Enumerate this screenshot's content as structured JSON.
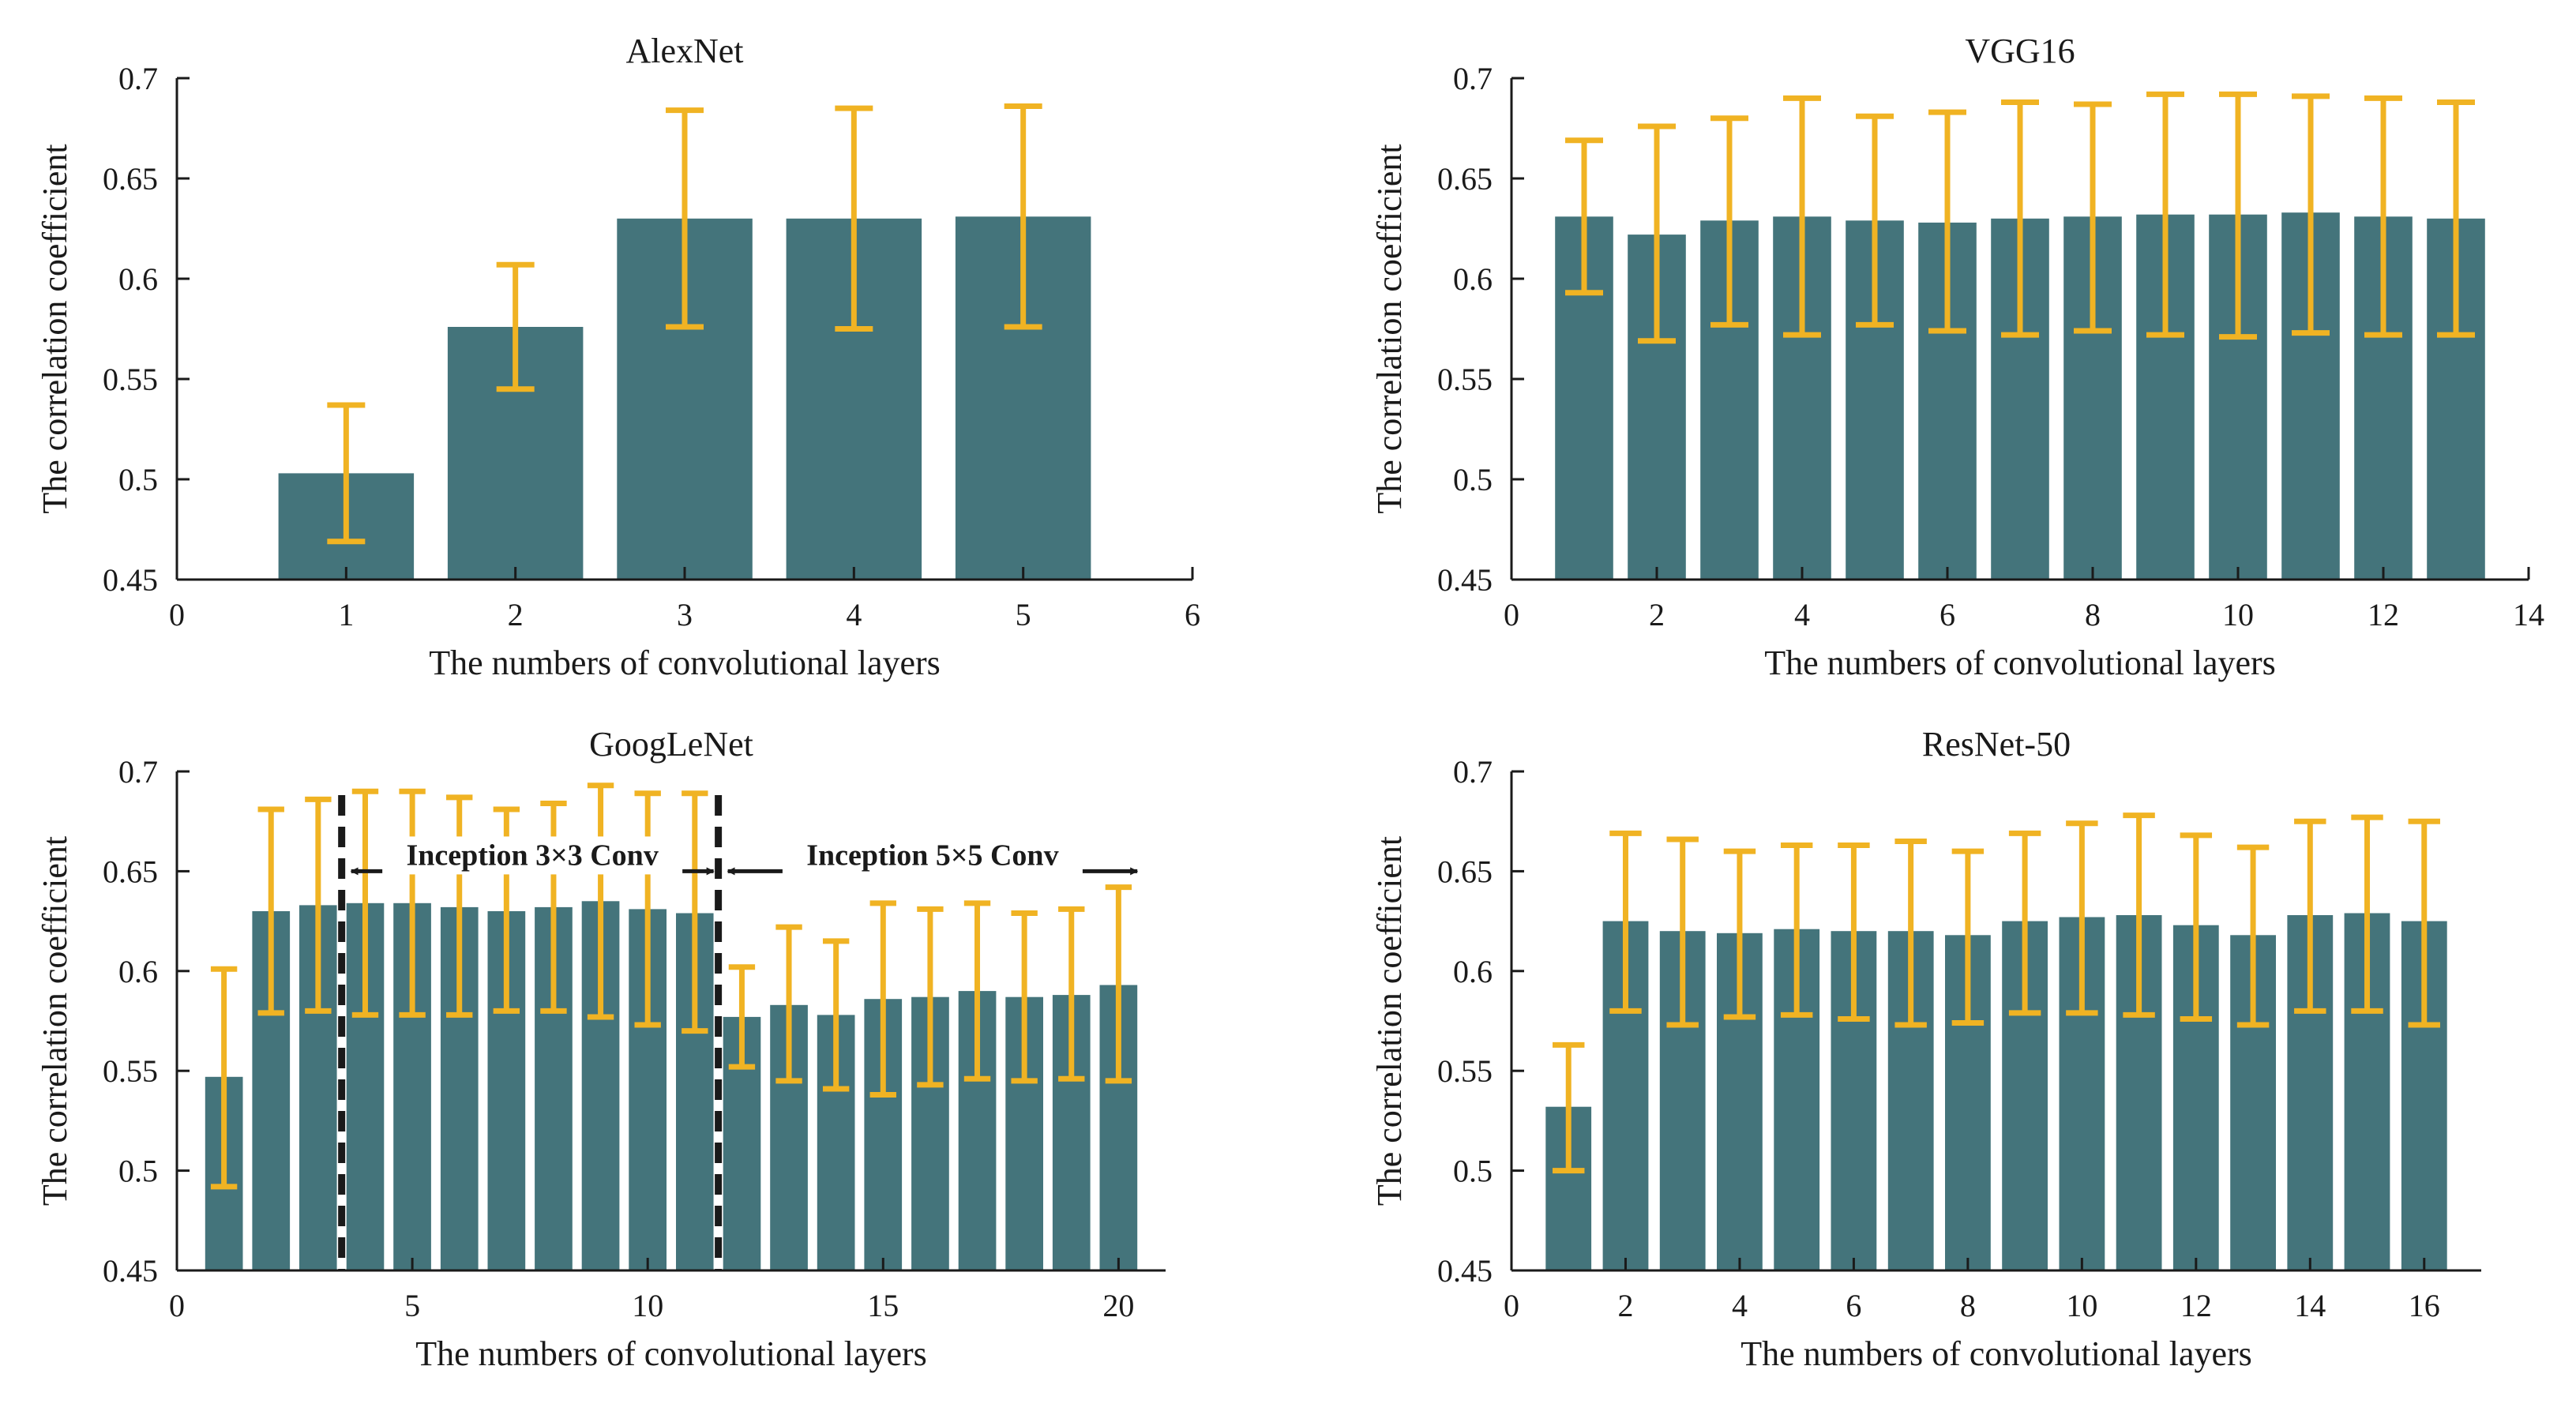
{
  "colors": {
    "bar": "#44747b",
    "error": "#f0b323",
    "axis": "#1a1a1a",
    "divider": "#1a1a1a"
  },
  "chart_data": [
    {
      "type": "bar",
      "title": "AlexNet",
      "xlabel": "The numbers of convolutional layers",
      "ylabel": "The correlation coefficient",
      "xlim": [
        0,
        6
      ],
      "ylim": [
        0.45,
        0.7
      ],
      "xticks": [
        0,
        1,
        2,
        3,
        4,
        5,
        6
      ],
      "yticks": [
        0.45,
        0.5,
        0.55,
        0.6,
        0.65,
        0.7
      ],
      "ytick_labels": [
        "0.45",
        "0.5",
        "0.55",
        "0.6",
        "0.65",
        "0.7"
      ],
      "x": [
        1,
        2,
        3,
        4,
        5
      ],
      "values": [
        0.503,
        0.576,
        0.63,
        0.63,
        0.631
      ],
      "err_low": [
        0.469,
        0.545,
        0.576,
        0.575,
        0.576
      ],
      "err_high": [
        0.537,
        0.607,
        0.684,
        0.685,
        0.686
      ]
    },
    {
      "type": "bar",
      "title": "VGG16",
      "xlabel": "The numbers of convolutional layers",
      "ylabel": "The correlation coefficient",
      "xlim": [
        0,
        14
      ],
      "ylim": [
        0.45,
        0.7
      ],
      "xticks": [
        0,
        2,
        4,
        6,
        8,
        10,
        12,
        14
      ],
      "yticks": [
        0.45,
        0.5,
        0.55,
        0.6,
        0.65,
        0.7
      ],
      "ytick_labels": [
        "0.45",
        "0.5",
        "0.55",
        "0.6",
        "0.65",
        "0.7"
      ],
      "x": [
        1,
        2,
        3,
        4,
        5,
        6,
        7,
        8,
        9,
        10,
        11,
        12,
        13
      ],
      "values": [
        0.631,
        0.622,
        0.629,
        0.631,
        0.629,
        0.628,
        0.63,
        0.631,
        0.632,
        0.632,
        0.633,
        0.631,
        0.63
      ],
      "err_low": [
        0.593,
        0.569,
        0.577,
        0.572,
        0.577,
        0.574,
        0.572,
        0.574,
        0.572,
        0.571,
        0.573,
        0.572,
        0.572
      ],
      "err_high": [
        0.669,
        0.676,
        0.68,
        0.69,
        0.681,
        0.683,
        0.688,
        0.687,
        0.692,
        0.692,
        0.691,
        0.69,
        0.688
      ]
    },
    {
      "type": "bar",
      "title": "GoogLeNet",
      "xlabel": "The numbers of convolutional layers",
      "ylabel": "The correlation coefficient",
      "xlim": [
        0,
        21
      ],
      "ylim": [
        0.45,
        0.7
      ],
      "xticks": [
        0,
        5,
        10,
        15,
        20
      ],
      "yticks": [
        0.45,
        0.5,
        0.55,
        0.6,
        0.65,
        0.7
      ],
      "ytick_labels": [
        "0.45",
        "0.5",
        "0.55",
        "0.6",
        "0.65",
        "0.7"
      ],
      "x": [
        1,
        2,
        3,
        4,
        5,
        6,
        7,
        8,
        9,
        10,
        11,
        12,
        13,
        14,
        15,
        16,
        17,
        18,
        19,
        20
      ],
      "values": [
        0.547,
        0.63,
        0.633,
        0.634,
        0.634,
        0.632,
        0.63,
        0.632,
        0.635,
        0.631,
        0.629,
        0.577,
        0.583,
        0.578,
        0.586,
        0.587,
        0.59,
        0.587,
        0.588,
        0.593
      ],
      "err_low": [
        0.492,
        0.579,
        0.58,
        0.578,
        0.578,
        0.578,
        0.58,
        0.58,
        0.577,
        0.573,
        0.57,
        0.552,
        0.545,
        0.541,
        0.538,
        0.543,
        0.546,
        0.545,
        0.546,
        0.545
      ],
      "err_high": [
        0.601,
        0.681,
        0.686,
        0.69,
        0.69,
        0.687,
        0.681,
        0.684,
        0.693,
        0.689,
        0.689,
        0.602,
        0.622,
        0.615,
        0.634,
        0.631,
        0.634,
        0.629,
        0.631,
        0.642
      ],
      "dividers": [
        3.5,
        11.5
      ],
      "annotations": [
        {
          "text": "Inception 3×3 Conv",
          "from": 3.5,
          "to": 11.5,
          "y": 0.65
        },
        {
          "text": "Inception 5×5 Conv",
          "from": 11.5,
          "to": 20.5,
          "y": 0.65
        }
      ]
    },
    {
      "type": "bar",
      "title": "ResNet-50",
      "xlabel": "The numbers of convolutional layers",
      "ylabel": "The correlation coefficient",
      "xlim": [
        0,
        17
      ],
      "ylim": [
        0.45,
        0.7
      ],
      "xticks": [
        0,
        2,
        4,
        6,
        8,
        10,
        12,
        14,
        16
      ],
      "yticks": [
        0.45,
        0.5,
        0.55,
        0.6,
        0.65,
        0.7
      ],
      "ytick_labels": [
        "0.45",
        "0.5",
        "0.55",
        "0.6",
        "0.65",
        "0.7"
      ],
      "x": [
        1,
        2,
        3,
        4,
        5,
        6,
        7,
        8,
        9,
        10,
        11,
        12,
        13,
        14,
        15,
        16
      ],
      "values": [
        0.532,
        0.625,
        0.62,
        0.619,
        0.621,
        0.62,
        0.62,
        0.618,
        0.625,
        0.627,
        0.628,
        0.623,
        0.618,
        0.628,
        0.629,
        0.625
      ],
      "err_low": [
        0.5,
        0.58,
        0.573,
        0.577,
        0.578,
        0.576,
        0.573,
        0.574,
        0.579,
        0.579,
        0.578,
        0.576,
        0.573,
        0.58,
        0.58,
        0.573
      ],
      "err_high": [
        0.563,
        0.669,
        0.666,
        0.66,
        0.663,
        0.663,
        0.665,
        0.66,
        0.669,
        0.674,
        0.678,
        0.668,
        0.662,
        0.675,
        0.677,
        0.675
      ]
    }
  ]
}
